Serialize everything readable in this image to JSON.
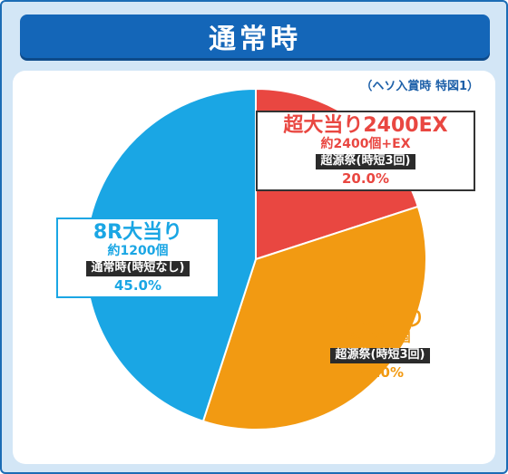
{
  "header": {
    "title": "通常時"
  },
  "note": "（ヘソ入賞時 特図1）",
  "chart_data": {
    "type": "pie",
    "title": "通常時",
    "slices": [
      {
        "title": "超大当り2400EX",
        "detail": "約2400個+EX",
        "mode": "超源祭(時短3回)",
        "percent_label": "20.0%",
        "value": 20.0,
        "color": "#e94741"
      },
      {
        "title": "8R大当り",
        "detail": "約1200個",
        "mode": "超源祭(時短3回)",
        "percent_label": "35.0%",
        "value": 35.0,
        "color": "#f29a12"
      },
      {
        "title": "8R大当り",
        "detail": "約1200個",
        "mode": "通常時(時短なし)",
        "percent_label": "45.0%",
        "value": 45.0,
        "color": "#1aa6e4"
      }
    ]
  }
}
